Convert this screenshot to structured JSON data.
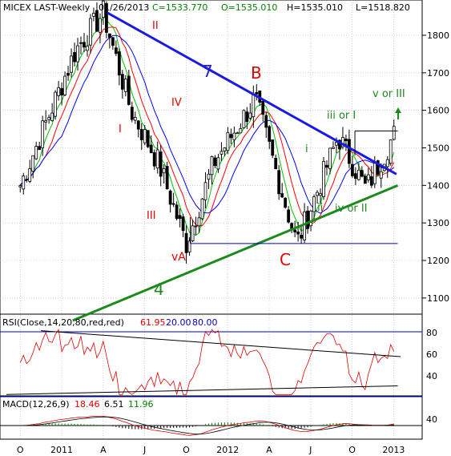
{
  "header": {
    "symbol": "MICEX LAST-Weekly",
    "date": "01/26/2013",
    "close": "C=1533.770",
    "open": "O=1535.010",
    "high": "H=1535.010",
    "low": "L=1518.820"
  },
  "rsi_panel": {
    "label": "RSI(Close,14,20,80,red,red)",
    "value": "61.95",
    "low_level_label": "20.00",
    "high_level_label": "80.00",
    "ticks": [
      "80",
      "60",
      "40"
    ]
  },
  "macd_panel": {
    "label": "MACD(12,26,9)",
    "macd": "18.46",
    "signal": "6.51",
    "hist": "11.96",
    "ticks": [
      "40"
    ]
  },
  "colors": {
    "background": "#ffffff",
    "candle": "#000000",
    "ma_fast": "#00c000",
    "ma_mid": "#ff0000",
    "ma_slow": "#0000ff",
    "trend_7": "#1a1ae6",
    "trend_4": "#1c8a1c",
    "wave_label": "#e00000",
    "green_label": "#1c8a1c",
    "rsi_line": "#e00000",
    "level_line": "#0000c0",
    "grid": "#b0b0b0"
  },
  "annotations": {
    "wave_II": "II",
    "wave_I": "I",
    "wave_IV": "IV",
    "wave_III": "III",
    "wave_vA": "vA",
    "wave_B": "B",
    "wave_C": "C",
    "trend_7": "7",
    "trend_4": "4",
    "small_i": "i",
    "small_ii": "ii",
    "iii_or_I": "iii or I",
    "iv_or_II": "iv or II",
    "v_or_III": "v or III"
  },
  "chart_data": {
    "type": "candlestick",
    "title": "MICEX LAST-Weekly",
    "y_ticks": [
      1100,
      1200,
      1300,
      1400,
      1500,
      1600,
      1700,
      1800
    ],
    "x_tick_labels": [
      "O",
      "2011",
      "A",
      "J",
      "O",
      "2012",
      "A",
      "J",
      "O",
      "2013"
    ],
    "grid": true,
    "price_key_points": [
      {
        "date": "2010-10",
        "value": 1400
      },
      {
        "date": "2011-02",
        "value": 1760
      },
      {
        "date": "2011-04",
        "value": 1860
      },
      {
        "date": "2011-06",
        "value": 1600
      },
      {
        "date": "2011-08",
        "value": 1460
      },
      {
        "date": "2011-10",
        "value": 1245
      },
      {
        "date": "2011-12",
        "value": 1460
      },
      {
        "date": "2012-03",
        "value": 1630
      },
      {
        "date": "2012-06",
        "value": 1245
      },
      {
        "date": "2012-09",
        "value": 1530
      },
      {
        "date": "2012-11",
        "value": 1390
      },
      {
        "date": "2013-01",
        "value": 1534
      }
    ],
    "horizontal_lines": [
      1245,
      1545
    ],
    "rsi_levels": [
      20,
      80
    ],
    "rsi_last": 61.95,
    "macd_last": 18.46
  }
}
